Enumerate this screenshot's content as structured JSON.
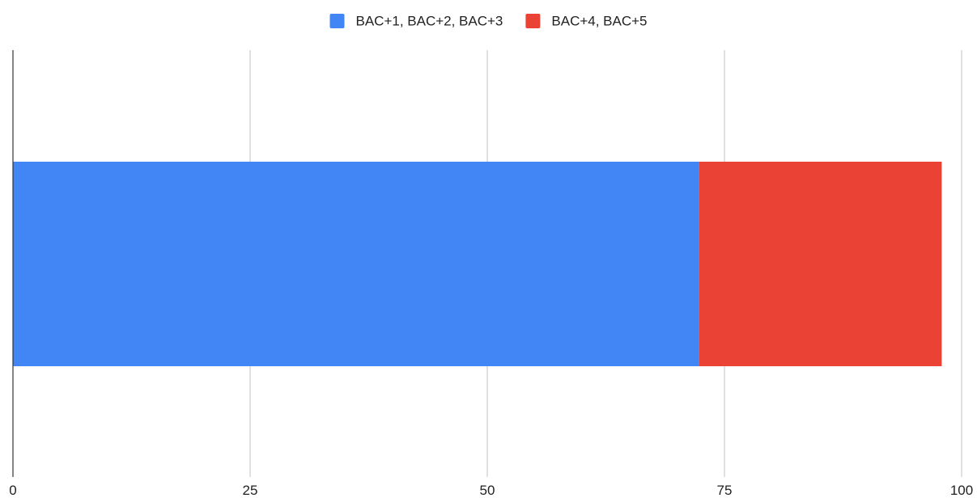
{
  "chart_data": {
    "type": "bar",
    "orientation": "horizontal",
    "stacked": true,
    "categories": [
      ""
    ],
    "series": [
      {
        "name": "BAC+1, BAC+2, BAC+3",
        "values": [
          72.3
        ],
        "color": "#4285f4"
      },
      {
        "name": "BAC+4, BAC+5",
        "values": [
          25.6
        ],
        "color": "#ea4335"
      }
    ],
    "xlim": [
      0,
      100
    ],
    "xticks": [
      0,
      25,
      50,
      75,
      100
    ],
    "xticklabels": [
      "0",
      "25",
      "50",
      "75",
      "100"
    ],
    "grid": true,
    "legend_position": "top",
    "title": "",
    "xlabel": "",
    "ylabel": ""
  }
}
